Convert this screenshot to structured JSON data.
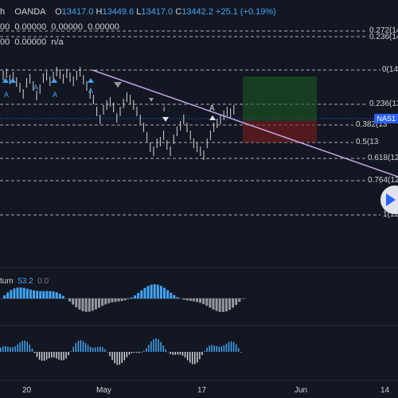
{
  "legend": {
    "timeframe": "h",
    "broker": "OANDA",
    "open": "13417.0",
    "high": "13449.6",
    "low": "13417.0",
    "close": "13442.2",
    "change": "+25.1 (+0.19%)"
  },
  "indicator_rows": {
    "row1": [
      "00",
      "0.00000",
      "0.00000",
      "0.00000"
    ],
    "row2": [
      "00",
      "0.00000",
      "n/a"
    ]
  },
  "fib_levels": [
    {
      "level": "0.272(14",
      "key": "f272"
    },
    {
      "level": "0.236(14",
      "key": "f236top"
    },
    {
      "level": "0(14",
      "key": "f0"
    },
    {
      "level": "0.236(13",
      "key": "f236"
    },
    {
      "level": "0.382(13",
      "key": "f382"
    },
    {
      "level": "0.5(13",
      "key": "f5"
    },
    {
      "level": "0.618(12",
      "key": "f618"
    },
    {
      "level": "0.764(12",
      "key": "f764"
    },
    {
      "level": "1(12",
      "key": "f1"
    }
  ],
  "price_tag": "NAS1",
  "momentum": {
    "name": "tum",
    "value1": "53.2",
    "value2": "0.0"
  },
  "x_axis": [
    "20",
    "May",
    "17",
    "Jun",
    "14"
  ],
  "markers": {
    "up": "A",
    "wave": "i"
  },
  "colors": {
    "bg": "#131722",
    "accent": "#42a5f5",
    "trend": "#c5a3e8",
    "green": "#1b5e20",
    "red": "#7f1d1d"
  }
}
